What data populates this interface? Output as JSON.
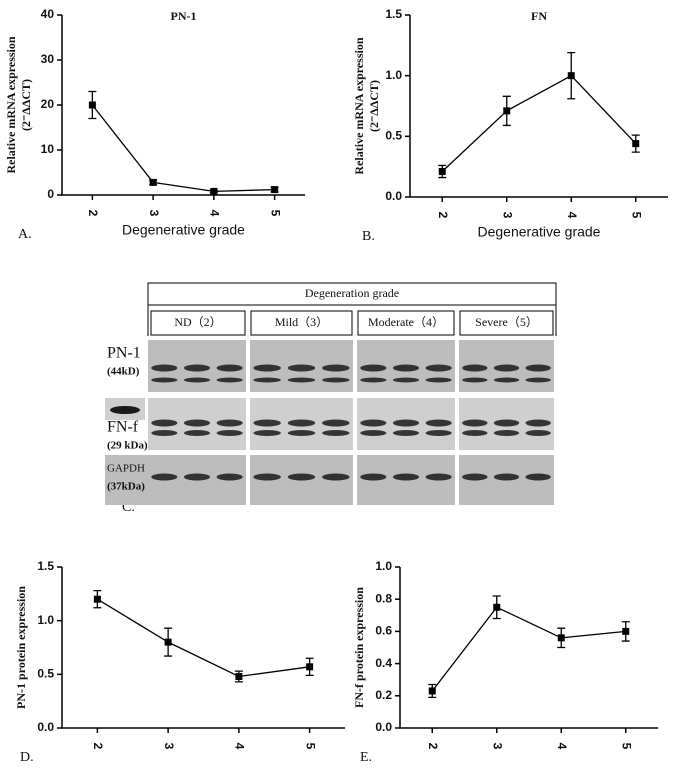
{
  "chart_data": [
    {
      "type": "line",
      "title": "PN-1",
      "ylabel": "Relative mRNA expression",
      "ylabel_sub": "(2⁻ΔΔCT)",
      "xlabel": "Degenerative grade",
      "panel_label": "A.",
      "categories": [
        "2",
        "3",
        "4",
        "5"
      ],
      "values": [
        20,
        2.8,
        0.8,
        1.2
      ],
      "errors": [
        3,
        0.5,
        0.3,
        0.5
      ],
      "ylim": [
        0,
        40
      ],
      "yticks": [
        0,
        10,
        20,
        30,
        40
      ],
      "color": "#000000"
    },
    {
      "type": "line",
      "title": "FN",
      "ylabel": "Relative mRNA expression",
      "ylabel_sub": "(2⁻ΔΔCT)",
      "xlabel": "Degenerative grade",
      "panel_label": "B.",
      "categories": [
        "2",
        "3",
        "4",
        "5"
      ],
      "values": [
        0.21,
        0.71,
        1.0,
        0.44
      ],
      "errors": [
        0.05,
        0.12,
        0.19,
        0.07
      ],
      "ylim": [
        0,
        1.5
      ],
      "yticks": [
        {
          "value": 0,
          "label": "0.0"
        },
        0.5,
        {
          "value": 1,
          "label": "1.0"
        },
        1.5
      ],
      "color": "#000000"
    },
    {
      "type": "line",
      "ylabel": "PN-1 protein expression",
      "panel_label": "D.",
      "categories": [
        "2",
        "3",
        "4",
        "5"
      ],
      "values": [
        1.2,
        0.8,
        0.48,
        0.57
      ],
      "errors": [
        0.08,
        0.13,
        0.05,
        0.08
      ],
      "ylim": [
        0,
        1.5
      ],
      "yticks": [
        {
          "value": 0,
          "label": "0.0"
        },
        0.5,
        {
          "value": 1,
          "label": "1.0"
        },
        1.5
      ],
      "color": "#000000"
    },
    {
      "type": "line",
      "ylabel": "FN-f protein expression",
      "panel_label": "E.",
      "categories": [
        "2",
        "3",
        "4",
        "5"
      ],
      "values": [
        0.23,
        0.75,
        0.56,
        0.6
      ],
      "errors": [
        0.04,
        0.07,
        0.06,
        0.06
      ],
      "ylim": [
        0,
        1.0
      ],
      "yticks": [
        {
          "value": 0,
          "label": "0.0"
        },
        0.2,
        0.4,
        0.6,
        0.8,
        {
          "value": 1,
          "label": "1.0"
        }
      ],
      "color": "#000000"
    }
  ],
  "blot": {
    "panel_label": "C.",
    "header": "Degeneration grade",
    "groups": [
      "ND（2）",
      "Mild（3）",
      "Moderate（4）",
      "Severe（5）"
    ],
    "rows": [
      {
        "name": "PN-1",
        "size": "(44kD)"
      },
      {
        "name": "FN-f",
        "size": "(29 kDa)"
      },
      {
        "name": "GAPDH",
        "size": "(37kDa)"
      }
    ]
  }
}
